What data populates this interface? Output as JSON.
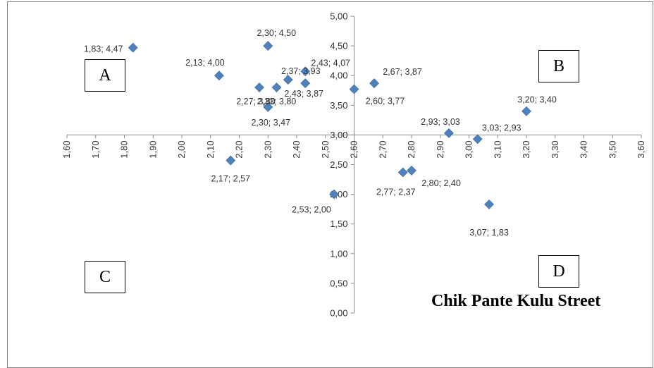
{
  "chart_data": {
    "type": "scatter",
    "title": "Chik Pante Kulu Street",
    "xlabel": "",
    "ylabel": "",
    "xlim": [
      1.6,
      3.6
    ],
    "ylim": [
      0.0,
      5.0
    ],
    "x_axis_crosses_y_at": 3.0,
    "y_axis_crosses_x_at": 2.6,
    "x_ticks": [
      "1,60",
      "1,70",
      "1,80",
      "1,90",
      "2,00",
      "2,10",
      "2,20",
      "2,30",
      "2,40",
      "2,50",
      "2,60",
      "2,70",
      "2,80",
      "2,90",
      "3,00",
      "3,10",
      "3,20",
      "3,30",
      "3,40",
      "3,50",
      "3,60"
    ],
    "y_ticks": [
      "0,00",
      "0,50",
      "1,00",
      "1,50",
      "2,00",
      "2,50",
      "3,00",
      "3,50",
      "4,00",
      "4,50",
      "5,00"
    ],
    "grid": false,
    "legend": "none",
    "marker_color": "#4F81BD",
    "quadrant_labels": [
      "A",
      "B",
      "C",
      "D"
    ],
    "points": [
      {
        "x": 1.83,
        "y": 4.47,
        "label": "1,83; 4,47"
      },
      {
        "x": 2.3,
        "y": 4.5,
        "label": "2,30; 4,50"
      },
      {
        "x": 2.13,
        "y": 4.0,
        "label": "2,13; 4,00"
      },
      {
        "x": 2.37,
        "y": 3.93,
        "label": "2,37; 3,93"
      },
      {
        "x": 2.43,
        "y": 4.07,
        "label": "2,43; 4,07"
      },
      {
        "x": 2.43,
        "y": 3.87,
        "label": "2,43; 3,87"
      },
      {
        "x": 2.27,
        "y": 3.8,
        "label": "2,27; 3,80"
      },
      {
        "x": 2.33,
        "y": 3.8,
        "label": "2,33; 3,80"
      },
      {
        "x": 2.3,
        "y": 3.47,
        "label": "2,30; 3,47"
      },
      {
        "x": 2.67,
        "y": 3.87,
        "label": "2,67; 3,87"
      },
      {
        "x": 2.6,
        "y": 3.77,
        "label": "2,60; 3,77"
      },
      {
        "x": 3.2,
        "y": 3.4,
        "label": "3,20; 3,40"
      },
      {
        "x": 2.93,
        "y": 3.03,
        "label": "2,93; 3,03"
      },
      {
        "x": 3.03,
        "y": 2.93,
        "label": "3,03; 2,93"
      },
      {
        "x": 2.17,
        "y": 2.57,
        "label": "2,17; 2,57"
      },
      {
        "x": 2.77,
        "y": 2.37,
        "label": "2,77; 2,37"
      },
      {
        "x": 2.8,
        "y": 2.4,
        "label": "2,80; 2,40"
      },
      {
        "x": 2.53,
        "y": 2.0,
        "label": "2,53; 2,00"
      },
      {
        "x": 3.07,
        "y": 1.83,
        "label": "3,07; 1,83"
      }
    ]
  }
}
